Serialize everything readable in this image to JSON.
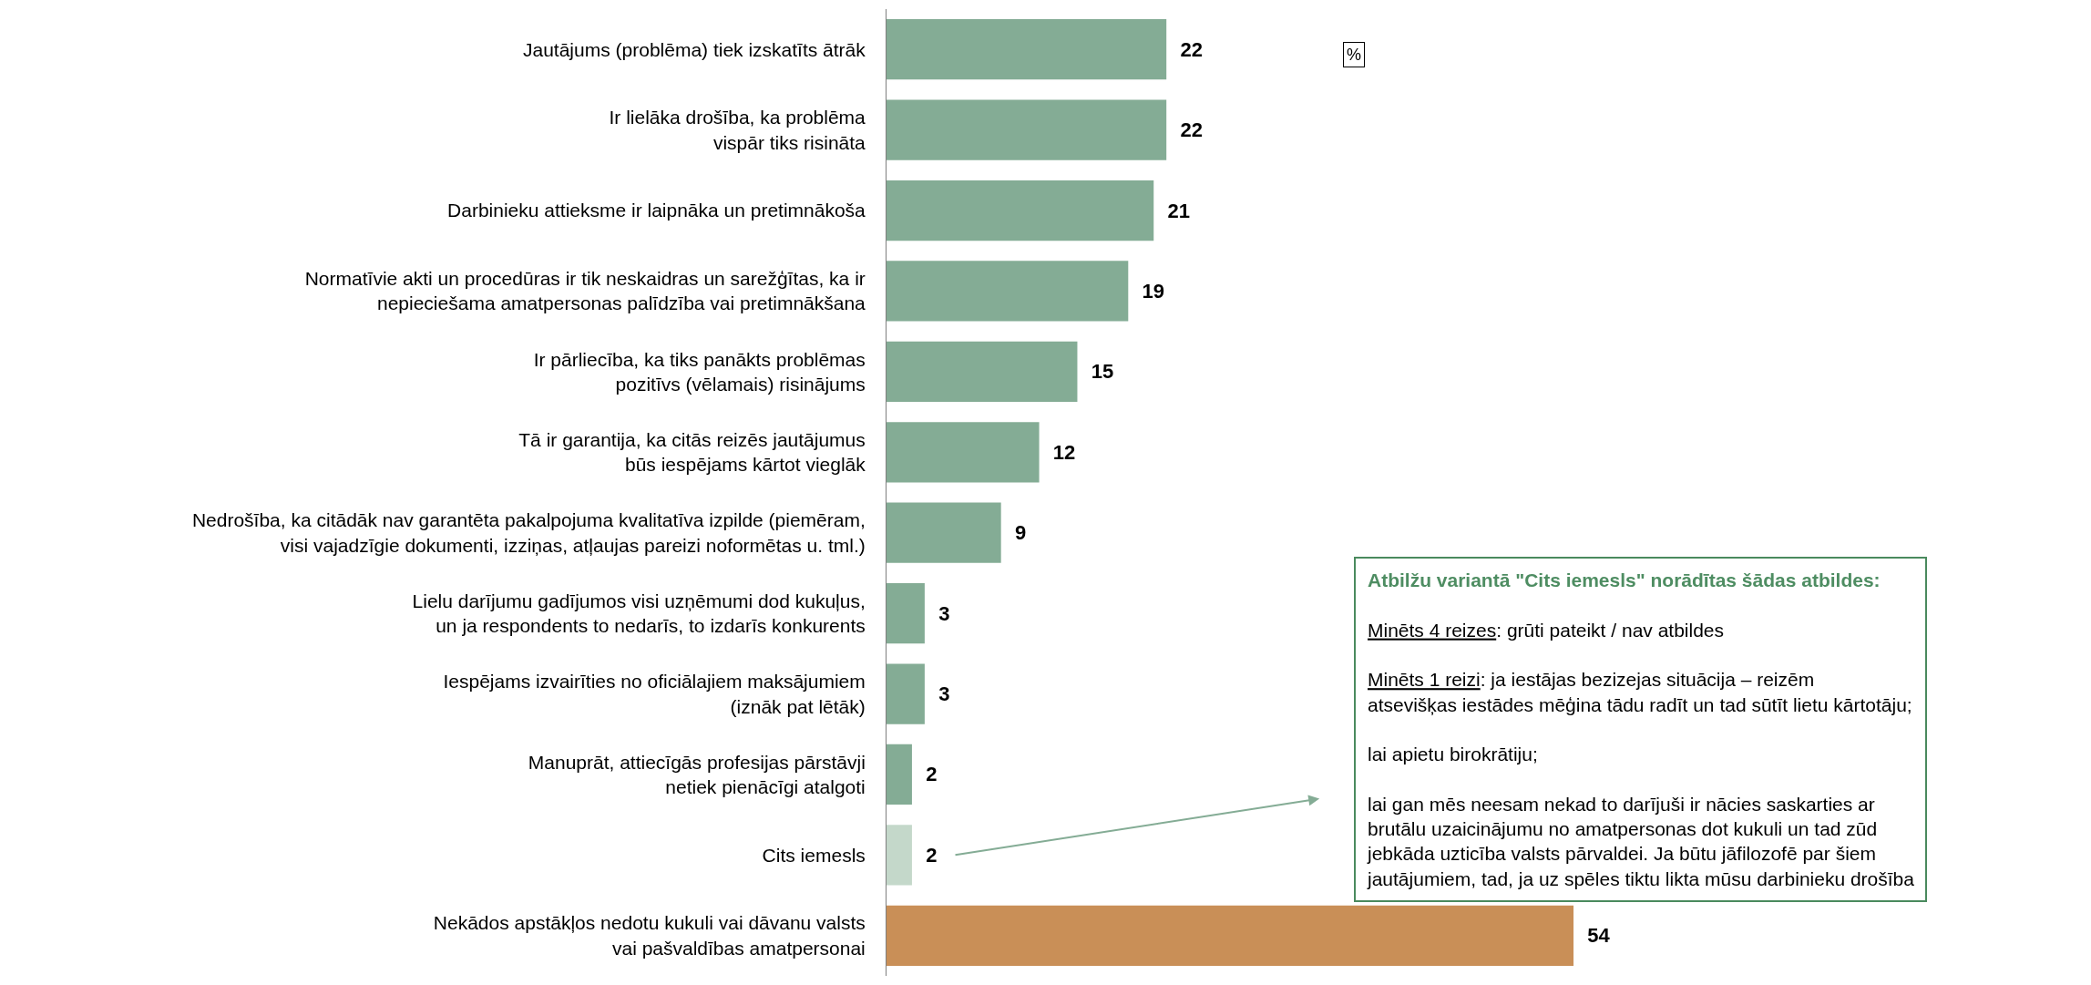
{
  "chart_data": {
    "type": "bar",
    "orientation": "horizontal",
    "data_labels": true,
    "categories": [
      "Jautājums (problēma) tiek izskatīts ātrāk",
      "Ir lielāka drošība, ka problēma\nvispār tiks risināta",
      "Darbinieku attieksme ir laipnāka un pretimnākoša",
      "Normatīvie akti un procedūras ir tik neskaidras un sarežģītas, ka ir\nnepieciešama amatpersonas palīdzība vai pretimnākšana",
      "Ir pārliecība, ka tiks panākts problēmas\npozitīvs (vēlamais) risinājums",
      "Tā ir garantija, ka citās reizēs jautājumus\nbūs iespējams kārtot vieglāk",
      "Nedrošība, ka citādāk nav garantēta pakalpojuma kvalitatīva izpilde (piemēram,\nvisi vajadzīgie dokumenti, izziņas, atļaujas pareizi noformētas u. tml.)",
      "Lielu darījumu gadījumos visi uzņēmumi dod kukuļus,\nun ja respondents to nedarīs, to izdarīs konkurents",
      "Iespējams izvairīties no oficiālajiem maksājumiem\n(iznāk pat lētāk)",
      "Manuprāt, attiecīgās profesijas pārstāvji\nnetiek pienācīgi atalgoti",
      "Cits iemesls",
      "Nekādos apstākļos nedotu kukuli vai dāvanu valsts\nvai pašvaldības amatpersonai"
    ],
    "values": [
      22,
      22,
      21,
      19,
      15,
      12,
      9,
      3,
      3,
      2,
      2,
      54
    ],
    "colors": [
      "#84ac95",
      "#84ac95",
      "#84ac95",
      "#84ac95",
      "#84ac95",
      "#84ac95",
      "#84ac95",
      "#84ac95",
      "#84ac95",
      "#84ac95",
      "#c4d8ca",
      "#c98f57"
    ],
    "annotations": [
      "%",
      "Atbilžu variantā \"Cits iemesls\" norādītas šādas atbildes:",
      "Minēts 4 reizes: grūti pateikt / nav atbildes",
      "Minēts 1 reizi: ja iestājas bezizejas situācija – reizēm\natsevišķas iestādes mēģina tādu radīt un tad sūtīt lietu kārtotāju;",
      "lai apietu birokrātiju;",
      "lai gan mēs neesam nekad to darījuši ir nācies saskarties ar\nbrutālu uzaicinājumu no amatpersonas dot kukuli un tad zūd\njebkāda uzticība valsts pārvaldei. Ja būtu jāfilozofē par šiem\njautājumiem, tad, ja uz spēles tiktu likta mūsu darbinieku drošība"
    ]
  }
}
